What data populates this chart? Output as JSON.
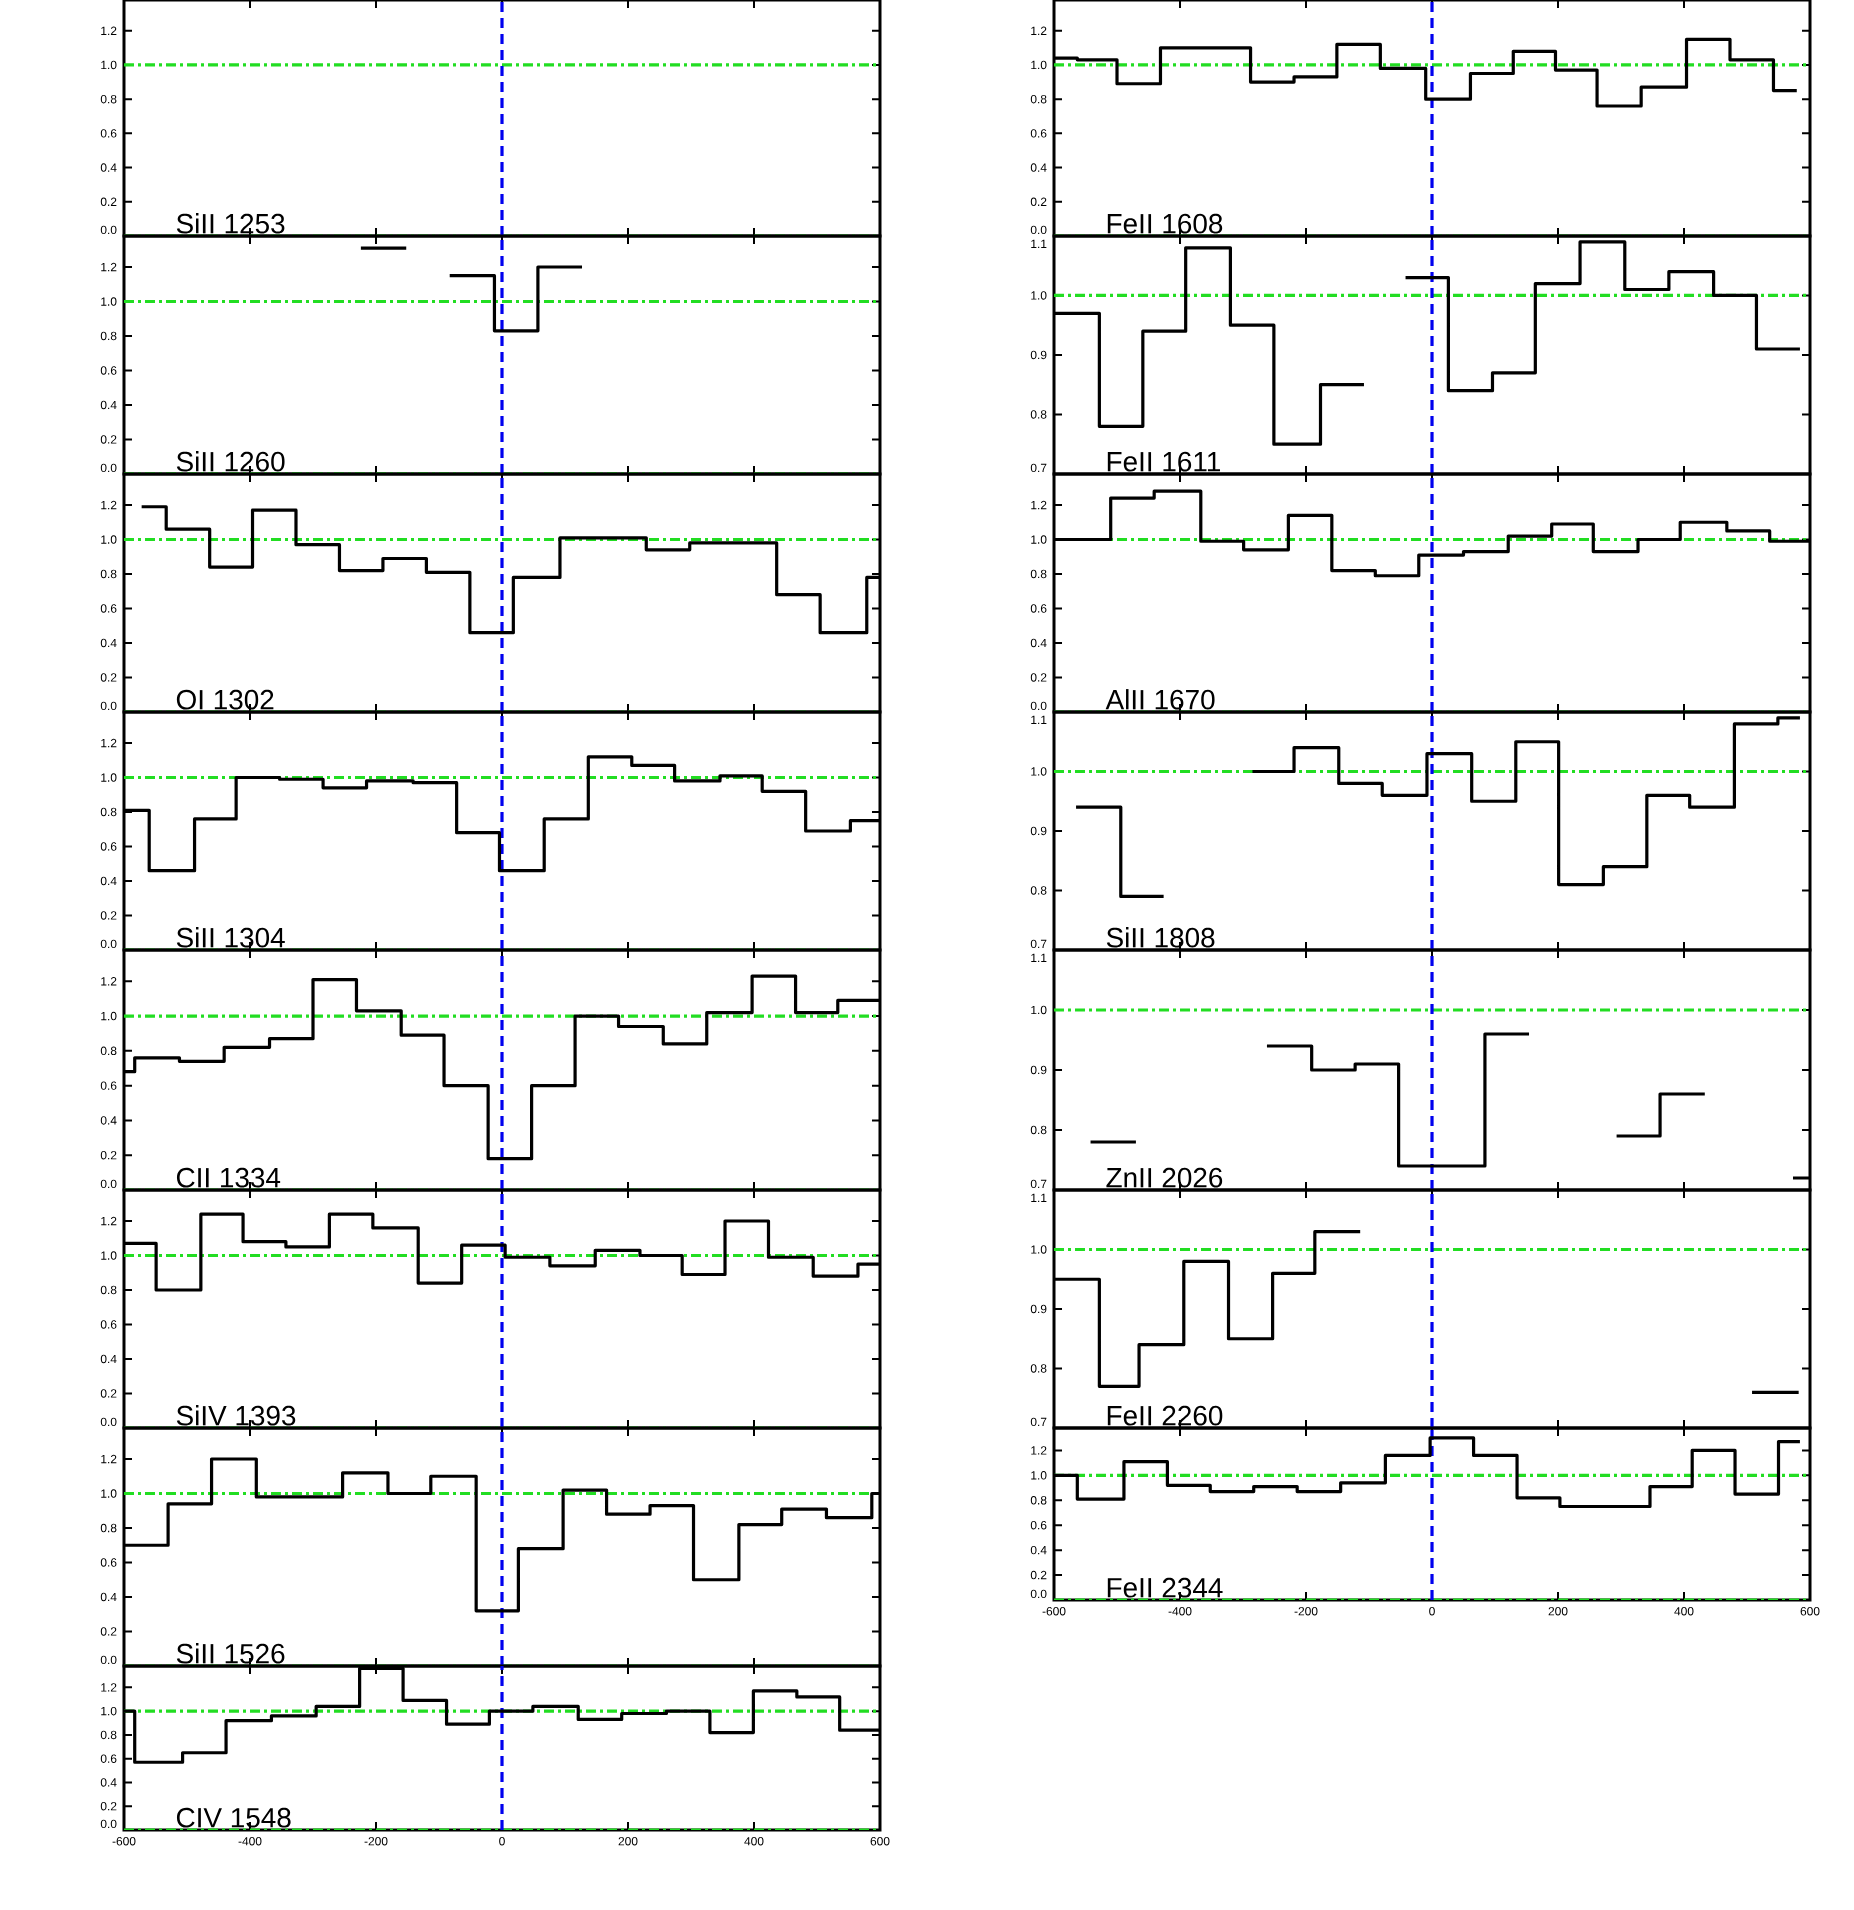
{
  "chart_data": [
    {
      "type": "step",
      "title": "SiII 1253",
      "xlim": [
        -600,
        600
      ],
      "ylim": [
        0,
        1.38
      ],
      "xticks": [
        -600,
        -400,
        -200,
        0,
        200,
        400,
        600
      ],
      "yticks": [
        {
          "value": 0,
          "label": "0.0"
        },
        {
          "value": 0.2,
          "label": "0.2"
        },
        {
          "value": 0.4,
          "label": "0.4"
        },
        {
          "value": 0.6,
          "label": "0.6"
        },
        {
          "value": 0.8,
          "label": "0.8"
        },
        {
          "value": 1.0,
          "label": "1.0"
        },
        {
          "value": 1.2,
          "label": "1.2"
        }
      ],
      "tick_labels": "y",
      "ref_lines": [
        {
          "axis": "y",
          "value": 0,
          "color": "#22dd22",
          "line_style": "dashdot"
        },
        {
          "axis": "y",
          "value": 1,
          "color": "#22dd22",
          "line_style": "dashdot"
        },
        {
          "axis": "x",
          "value": 0,
          "color": "#0000ee",
          "line_style": "dashed"
        }
      ]
    },
    {
      "type": "step",
      "title": "SiII 1260",
      "color": "#000000",
      "x": [
        -224,
        -152,
        -83,
        -12,
        57,
        127
      ],
      "values": [
        1.31,
        null,
        1.15,
        0.83,
        1.2,
        1.2
      ],
      "xlim": [
        -600,
        600
      ],
      "ylim": [
        0,
        1.38
      ],
      "xticks": [
        -600,
        -400,
        -200,
        0,
        200,
        400,
        600
      ],
      "yticks": [
        {
          "value": 0,
          "label": "0.0"
        },
        {
          "value": 0.2,
          "label": "0.2"
        },
        {
          "value": 0.4,
          "label": "0.4"
        },
        {
          "value": 0.6,
          "label": "0.6"
        },
        {
          "value": 0.8,
          "label": "0.8"
        },
        {
          "value": 1.0,
          "label": "1.0"
        },
        {
          "value": 1.2,
          "label": "1.2"
        }
      ],
      "tick_labels": "y",
      "ref_lines": [
        {
          "axis": "y",
          "value": 0,
          "color": "#22dd22",
          "line_style": "dashdot"
        },
        {
          "axis": "y",
          "value": 1,
          "color": "#22dd22",
          "line_style": "dashdot"
        },
        {
          "axis": "x",
          "value": 0,
          "color": "#0000ee",
          "line_style": "dashed"
        }
      ]
    },
    {
      "type": "step",
      "title": "OI 1302",
      "color": "#000000",
      "x": [
        -572,
        -533,
        -464,
        -396,
        -327,
        -258,
        -189,
        -120,
        -51,
        18,
        92,
        161,
        229,
        298,
        367,
        436,
        505,
        579,
        600
      ],
      "values": [
        1.19,
        1.06,
        0.84,
        1.17,
        0.97,
        0.82,
        0.89,
        0.81,
        0.46,
        0.78,
        1.01,
        1.01,
        0.94,
        0.98,
        0.98,
        0.68,
        0.46,
        0.78,
        0.78
      ],
      "xlim": [
        -600,
        600
      ],
      "ylim": [
        0,
        1.38
      ],
      "xticks": [
        -600,
        -400,
        -200,
        0,
        200,
        400,
        600
      ],
      "yticks": [
        {
          "value": 0,
          "label": "0.0"
        },
        {
          "value": 0.2,
          "label": "0.2"
        },
        {
          "value": 0.4,
          "label": "0.4"
        },
        {
          "value": 0.6,
          "label": "0.6"
        },
        {
          "value": 0.8,
          "label": "0.8"
        },
        {
          "value": 1.0,
          "label": "1.0"
        },
        {
          "value": 1.2,
          "label": "1.2"
        }
      ],
      "tick_labels": "y",
      "ref_lines": [
        {
          "axis": "y",
          "value": 0,
          "color": "#22dd22",
          "line_style": "dashdot"
        },
        {
          "axis": "y",
          "value": 1,
          "color": "#22dd22",
          "line_style": "dashdot"
        },
        {
          "axis": "x",
          "value": 0,
          "color": "#0000ee",
          "line_style": "dashed"
        }
      ]
    },
    {
      "type": "step",
      "title": "SiII 1304",
      "color": "#000000",
      "x": [
        -600,
        -560,
        -488,
        -422,
        -353,
        -284,
        -215,
        -141,
        -72,
        -4,
        67,
        137,
        206,
        274,
        346,
        413,
        482,
        553,
        600
      ],
      "values": [
        0.81,
        0.46,
        0.76,
        1.0,
        0.99,
        0.94,
        0.98,
        0.97,
        0.68,
        0.46,
        0.76,
        1.12,
        1.07,
        0.98,
        1.01,
        0.92,
        0.69,
        0.75,
        0.75
      ],
      "xlim": [
        -600,
        600
      ],
      "ylim": [
        0,
        1.38
      ],
      "xticks": [
        -600,
        -400,
        -200,
        0,
        200,
        400,
        600
      ],
      "yticks": [
        {
          "value": 0,
          "label": "0.0"
        },
        {
          "value": 0.2,
          "label": "0.2"
        },
        {
          "value": 0.4,
          "label": "0.4"
        },
        {
          "value": 0.6,
          "label": "0.6"
        },
        {
          "value": 0.8,
          "label": "0.8"
        },
        {
          "value": 1.0,
          "label": "1.0"
        },
        {
          "value": 1.2,
          "label": "1.2"
        }
      ],
      "tick_labels": "y",
      "ref_lines": [
        {
          "axis": "y",
          "value": 0,
          "color": "#22dd22",
          "line_style": "dashdot"
        },
        {
          "axis": "y",
          "value": 1,
          "color": "#22dd22",
          "line_style": "dashdot"
        },
        {
          "axis": "x",
          "value": 0,
          "color": "#0000ee",
          "line_style": "dashed"
        }
      ]
    },
    {
      "type": "step",
      "title": "CII 1334",
      "color": "#000000",
      "x": [
        -600,
        -583,
        -512,
        -441,
        -369,
        -300,
        -231,
        -160,
        -92,
        -22,
        47,
        116,
        185,
        256,
        325,
        397,
        466,
        533,
        600
      ],
      "values": [
        0.68,
        0.76,
        0.74,
        0.82,
        0.87,
        1.21,
        1.03,
        0.89,
        0.6,
        0.18,
        0.6,
        1.0,
        0.94,
        0.84,
        1.02,
        1.23,
        1.02,
        1.09,
        1.09
      ],
      "xlim": [
        -600,
        600
      ],
      "ylim": [
        0,
        1.38
      ],
      "xticks": [
        -600,
        -400,
        -200,
        0,
        200,
        400,
        600
      ],
      "yticks": [
        {
          "value": 0,
          "label": "0.0"
        },
        {
          "value": 0.2,
          "label": "0.2"
        },
        {
          "value": 0.4,
          "label": "0.4"
        },
        {
          "value": 0.6,
          "label": "0.6"
        },
        {
          "value": 0.8,
          "label": "0.8"
        },
        {
          "value": 1.0,
          "label": "1.0"
        },
        {
          "value": 1.2,
          "label": "1.2"
        }
      ],
      "tick_labels": "y",
      "ref_lines": [
        {
          "axis": "y",
          "value": 0,
          "color": "#22dd22",
          "line_style": "dashdot"
        },
        {
          "axis": "y",
          "value": 1,
          "color": "#22dd22",
          "line_style": "dashdot"
        },
        {
          "axis": "x",
          "value": 0,
          "color": "#0000ee",
          "line_style": "dashed"
        }
      ]
    },
    {
      "type": "step",
      "title": "SiIV 1393",
      "color": "#000000",
      "x": [
        -600,
        -549,
        -478,
        -411,
        -343,
        -274,
        -205,
        -133,
        -64,
        5,
        76,
        148,
        219,
        286,
        354,
        423,
        494,
        565,
        600
      ],
      "values": [
        1.07,
        0.8,
        1.24,
        1.08,
        1.05,
        1.24,
        1.16,
        0.84,
        1.06,
        0.99,
        0.94,
        1.03,
        1.0,
        0.89,
        1.2,
        0.99,
        0.88,
        0.95,
        0.95
      ],
      "xlim": [
        -600,
        600
      ],
      "ylim": [
        0,
        1.38
      ],
      "xticks": [
        -600,
        -400,
        -200,
        0,
        200,
        400,
        600
      ],
      "yticks": [
        {
          "value": 0,
          "label": "0.0"
        },
        {
          "value": 0.2,
          "label": "0.2"
        },
        {
          "value": 0.4,
          "label": "0.4"
        },
        {
          "value": 0.6,
          "label": "0.6"
        },
        {
          "value": 0.8,
          "label": "0.8"
        },
        {
          "value": 1.0,
          "label": "1.0"
        },
        {
          "value": 1.2,
          "label": "1.2"
        }
      ],
      "tick_labels": "y",
      "ref_lines": [
        {
          "axis": "y",
          "value": 0,
          "color": "#22dd22",
          "line_style": "dashdot"
        },
        {
          "axis": "y",
          "value": 1,
          "color": "#22dd22",
          "line_style": "dashdot"
        },
        {
          "axis": "x",
          "value": 0,
          "color": "#0000ee",
          "line_style": "dashed"
        }
      ]
    },
    {
      "type": "step",
      "title": "SiII 1526",
      "color": "#000000",
      "x": [
        -600,
        -530,
        -461,
        -390,
        -321,
        -253,
        -181,
        -113,
        -41,
        26,
        97,
        166,
        235,
        304,
        376,
        444,
        515,
        587,
        600
      ],
      "values": [
        0.7,
        0.94,
        1.2,
        0.98,
        0.98,
        1.12,
        1.0,
        1.1,
        0.32,
        0.68,
        1.02,
        0.88,
        0.93,
        0.5,
        0.82,
        0.91,
        0.86,
        1.0,
        1.0
      ],
      "xlim": [
        -600,
        600
      ],
      "ylim": [
        0,
        1.38
      ],
      "xticks": [
        -600,
        -400,
        -200,
        0,
        200,
        400,
        600
      ],
      "yticks": [
        {
          "value": 0,
          "label": "0.0"
        },
        {
          "value": 0.2,
          "label": "0.2"
        },
        {
          "value": 0.4,
          "label": "0.4"
        },
        {
          "value": 0.6,
          "label": "0.6"
        },
        {
          "value": 0.8,
          "label": "0.8"
        },
        {
          "value": 1.0,
          "label": "1.0"
        },
        {
          "value": 1.2,
          "label": "1.2"
        }
      ],
      "tick_labels": "y",
      "ref_lines": [
        {
          "axis": "y",
          "value": 0,
          "color": "#22dd22",
          "line_style": "dashdot"
        },
        {
          "axis": "y",
          "value": 1,
          "color": "#22dd22",
          "line_style": "dashdot"
        },
        {
          "axis": "x",
          "value": 0,
          "color": "#0000ee",
          "line_style": "dashed"
        }
      ]
    },
    {
      "type": "step",
      "title": "CIV 1548",
      "color": "#000000",
      "x": [
        -600,
        -583,
        -507,
        -438,
        -366,
        -295,
        -226,
        -157,
        -88,
        -20,
        49,
        121,
        190,
        261,
        330,
        399,
        468,
        536,
        600
      ],
      "values": [
        1.0,
        0.57,
        0.65,
        0.92,
        0.96,
        1.04,
        1.36,
        1.09,
        0.89,
        1.0,
        1.04,
        0.93,
        0.98,
        1.0,
        0.82,
        1.17,
        1.12,
        0.84,
        0.84
      ],
      "xlim": [
        -600,
        600
      ],
      "ylim": [
        0,
        1.38
      ],
      "xticks": [
        -600,
        -400,
        -200,
        0,
        200,
        400,
        600
      ],
      "yticks": [
        {
          "value": 0,
          "label": "0.0"
        },
        {
          "value": 0.2,
          "label": "0.2"
        },
        {
          "value": 0.4,
          "label": "0.4"
        },
        {
          "value": 0.6,
          "label": "0.6"
        },
        {
          "value": 0.8,
          "label": "0.8"
        },
        {
          "value": 1.0,
          "label": "1.0"
        },
        {
          "value": 1.2,
          "label": "1.2"
        }
      ],
      "ref_lines": [
        {
          "axis": "y",
          "value": 0,
          "color": "#22dd22",
          "line_style": "dashdot"
        },
        {
          "axis": "y",
          "value": 1,
          "color": "#22dd22",
          "line_style": "dashdot"
        },
        {
          "axis": "x",
          "value": 0,
          "color": "#0000ee",
          "line_style": "dashed"
        }
      ]
    },
    {
      "type": "step",
      "title": "FeII 1608",
      "color": "#000000",
      "x": [
        -600,
        -563,
        -500,
        -431,
        -362,
        -288,
        -219,
        -151,
        -82,
        -10,
        61,
        129,
        196,
        262,
        332,
        404,
        473,
        542,
        579
      ],
      "values": [
        1.04,
        1.03,
        0.89,
        1.1,
        1.1,
        0.9,
        0.93,
        1.12,
        0.98,
        0.8,
        0.95,
        1.08,
        0.97,
        0.76,
        0.87,
        1.15,
        1.03,
        0.85,
        0.85
      ],
      "xlim": [
        -600,
        600
      ],
      "ylim": [
        0,
        1.38
      ],
      "xticks": [
        -600,
        -400,
        -200,
        0,
        200,
        400,
        600
      ],
      "yticks": [
        {
          "value": 0,
          "label": "0.0"
        },
        {
          "value": 0.2,
          "label": "0.2"
        },
        {
          "value": 0.4,
          "label": "0.4"
        },
        {
          "value": 0.6,
          "label": "0.6"
        },
        {
          "value": 0.8,
          "label": "0.8"
        },
        {
          "value": 1.0,
          "label": "1.0"
        },
        {
          "value": 1.2,
          "label": "1.2"
        }
      ],
      "tick_labels": "y",
      "ref_lines": [
        {
          "axis": "y",
          "value": 0,
          "color": "#22dd22",
          "line_style": "dashdot"
        },
        {
          "axis": "y",
          "value": 1,
          "color": "#22dd22",
          "line_style": "dashdot"
        },
        {
          "axis": "x",
          "value": 0,
          "color": "#0000ee",
          "line_style": "dashed"
        }
      ]
    },
    {
      "type": "step",
      "title": "FeII 1611",
      "color": "#000000",
      "x": [
        -600,
        -528,
        -459,
        -391,
        -320,
        -251,
        -177,
        -108,
        -42,
        26,
        96,
        164,
        235,
        306,
        376,
        447,
        515,
        584
      ],
      "values": [
        0.97,
        0.78,
        0.94,
        1.08,
        0.95,
        0.75,
        0.85,
        null,
        1.03,
        0.84,
        0.87,
        1.02,
        1.09,
        1.01,
        1.04,
        1.0,
        0.91,
        0.91
      ],
      "xlim": [
        -600,
        600
      ],
      "ylim": [
        0.7,
        1.1
      ],
      "xticks": [
        -600,
        -400,
        -200,
        0,
        200,
        400,
        600
      ],
      "yticks": [
        {
          "value": 0.7,
          "label": "0.7"
        },
        {
          "value": 0.8,
          "label": "0.8"
        },
        {
          "value": 0.9,
          "label": "0.9"
        },
        {
          "value": 1.0,
          "label": "1.0"
        },
        {
          "value": 1.1,
          "label": "1.1"
        }
      ],
      "tick_labels": "y",
      "ref_lines": [
        {
          "axis": "y",
          "value": 1,
          "color": "#22dd22",
          "line_style": "dashdot"
        },
        {
          "axis": "x",
          "value": 0,
          "color": "#0000ee",
          "line_style": "dashed"
        }
      ]
    },
    {
      "type": "step",
      "title": "AlII 1670",
      "color": "#000000",
      "x": [
        -600,
        -510,
        -441,
        -367,
        -299,
        -228,
        -159,
        -90,
        -21,
        50,
        121,
        190,
        256,
        327,
        394,
        468,
        536,
        600
      ],
      "values": [
        1.0,
        1.24,
        1.28,
        0.99,
        0.94,
        1.14,
        0.82,
        0.79,
        0.91,
        0.93,
        1.02,
        1.09,
        0.93,
        1.0,
        1.1,
        1.05,
        0.99,
        0.99
      ],
      "xlim": [
        -600,
        600
      ],
      "ylim": [
        0,
        1.38
      ],
      "xticks": [
        -600,
        -400,
        -200,
        0,
        200,
        400,
        600
      ],
      "yticks": [
        {
          "value": 0,
          "label": "0.0"
        },
        {
          "value": 0.2,
          "label": "0.2"
        },
        {
          "value": 0.4,
          "label": "0.4"
        },
        {
          "value": 0.6,
          "label": "0.6"
        },
        {
          "value": 0.8,
          "label": "0.8"
        },
        {
          "value": 1.0,
          "label": "1.0"
        },
        {
          "value": 1.2,
          "label": "1.2"
        }
      ],
      "tick_labels": "y",
      "ref_lines": [
        {
          "axis": "y",
          "value": 0,
          "color": "#22dd22",
          "line_style": "dashdot"
        },
        {
          "axis": "y",
          "value": 1,
          "color": "#22dd22",
          "line_style": "dashdot"
        },
        {
          "axis": "x",
          "value": 0,
          "color": "#0000ee",
          "line_style": "dashed"
        }
      ]
    },
    {
      "type": "step",
      "title": "SiII 1808",
      "color": "#000000",
      "x": [
        -565,
        -494,
        -426,
        -285,
        -219,
        -148,
        -79,
        -8,
        63,
        133,
        201,
        272,
        341,
        409,
        480,
        549,
        584
      ],
      "values": [
        0.94,
        0.79,
        null,
        1.0,
        1.04,
        0.98,
        0.96,
        1.03,
        0.95,
        1.05,
        0.81,
        0.84,
        0.96,
        0.94,
        1.08,
        1.09,
        1.09
      ],
      "xlim": [
        -600,
        600
      ],
      "ylim": [
        0.7,
        1.1
      ],
      "xticks": [
        -600,
        -400,
        -200,
        0,
        200,
        400,
        600
      ],
      "yticks": [
        {
          "value": 0.7,
          "label": "0.7"
        },
        {
          "value": 0.8,
          "label": "0.8"
        },
        {
          "value": 0.9,
          "label": "0.9"
        },
        {
          "value": 1.0,
          "label": "1.0"
        },
        {
          "value": 1.1,
          "label": "1.1"
        }
      ],
      "tick_labels": "y",
      "ref_lines": [
        {
          "axis": "y",
          "value": 1,
          "color": "#22dd22",
          "line_style": "dashdot"
        },
        {
          "axis": "x",
          "value": 0,
          "color": "#0000ee",
          "line_style": "dashed"
        }
      ]
    },
    {
      "type": "step",
      "title": "ZnII 2026",
      "color": "#000000",
      "x": [
        -542,
        -470,
        -262,
        -191,
        -122,
        -53,
        15,
        84,
        154,
        293,
        362,
        433,
        573,
        600
      ],
      "values": [
        0.78,
        null,
        0.94,
        0.9,
        0.91,
        0.74,
        0.74,
        0.96,
        null,
        0.79,
        0.86,
        null,
        0.72,
        0.72
      ],
      "xlim": [
        -600,
        600
      ],
      "ylim": [
        0.7,
        1.1
      ],
      "xticks": [
        -600,
        -400,
        -200,
        0,
        200,
        400,
        600
      ],
      "yticks": [
        {
          "value": 0.7,
          "label": "0.7"
        },
        {
          "value": 0.8,
          "label": "0.8"
        },
        {
          "value": 0.9,
          "label": "0.9"
        },
        {
          "value": 1.0,
          "label": "1.0"
        },
        {
          "value": 1.1,
          "label": "1.1"
        }
      ],
      "tick_labels": "y",
      "ref_lines": [
        {
          "axis": "y",
          "value": 1,
          "color": "#22dd22",
          "line_style": "dashdot"
        },
        {
          "axis": "x",
          "value": 0,
          "color": "#0000ee",
          "line_style": "dashed"
        }
      ]
    },
    {
      "type": "step",
      "title": "FeII 2260",
      "color": "#000000",
      "x": [
        -600,
        -528,
        -465,
        -394,
        -323,
        -253,
        -186,
        -114,
        438,
        508,
        582
      ],
      "values": [
        0.95,
        0.77,
        0.84,
        0.98,
        0.85,
        0.96,
        1.03,
        null,
        null,
        0.76,
        0.76
      ],
      "xlim": [
        -600,
        600
      ],
      "ylim": [
        0.7,
        1.1
      ],
      "xticks": [
        -600,
        -400,
        -200,
        0,
        200,
        400,
        600
      ],
      "yticks": [
        {
          "value": 0.7,
          "label": "0.7"
        },
        {
          "value": 0.8,
          "label": "0.8"
        },
        {
          "value": 0.9,
          "label": "0.9"
        },
        {
          "value": 1.0,
          "label": "1.0"
        },
        {
          "value": 1.1,
          "label": "1.1"
        }
      ],
      "tick_labels": "y",
      "ref_lines": [
        {
          "axis": "y",
          "value": 1,
          "color": "#22dd22",
          "line_style": "dashdot"
        },
        {
          "axis": "x",
          "value": 0,
          "color": "#0000ee",
          "line_style": "dashed"
        }
      ]
    },
    {
      "type": "step",
      "title": "FeII 2344",
      "color": "#000000",
      "x": [
        -600,
        -563,
        -489,
        -420,
        -352,
        -283,
        -214,
        -145,
        -74,
        -3,
        66,
        135,
        203,
        272,
        346,
        413,
        481,
        550,
        584
      ],
      "values": [
        1.0,
        0.81,
        1.11,
        0.92,
        0.87,
        0.91,
        0.87,
        0.94,
        1.16,
        1.3,
        1.16,
        0.82,
        0.75,
        0.75,
        0.91,
        1.2,
        0.85,
        1.27,
        1.27
      ],
      "xlim": [
        -600,
        600
      ],
      "ylim": [
        0,
        1.38
      ],
      "xticks": [
        -600,
        -400,
        -200,
        0,
        200,
        400,
        600
      ],
      "yticks": [
        {
          "value": 0,
          "label": "0.0"
        },
        {
          "value": 0.2,
          "label": "0.2"
        },
        {
          "value": 0.4,
          "label": "0.4"
        },
        {
          "value": 0.6,
          "label": "0.6"
        },
        {
          "value": 0.8,
          "label": "0.8"
        },
        {
          "value": 1.0,
          "label": "1.0"
        },
        {
          "value": 1.2,
          "label": "1.2"
        }
      ],
      "ref_lines": [
        {
          "axis": "y",
          "value": 0,
          "color": "#22dd22",
          "line_style": "dashdot"
        },
        {
          "axis": "y",
          "value": 1,
          "color": "#22dd22",
          "line_style": "dashdot"
        },
        {
          "axis": "x",
          "value": 0,
          "color": "#0000ee",
          "line_style": "dashed"
        }
      ]
    }
  ]
}
